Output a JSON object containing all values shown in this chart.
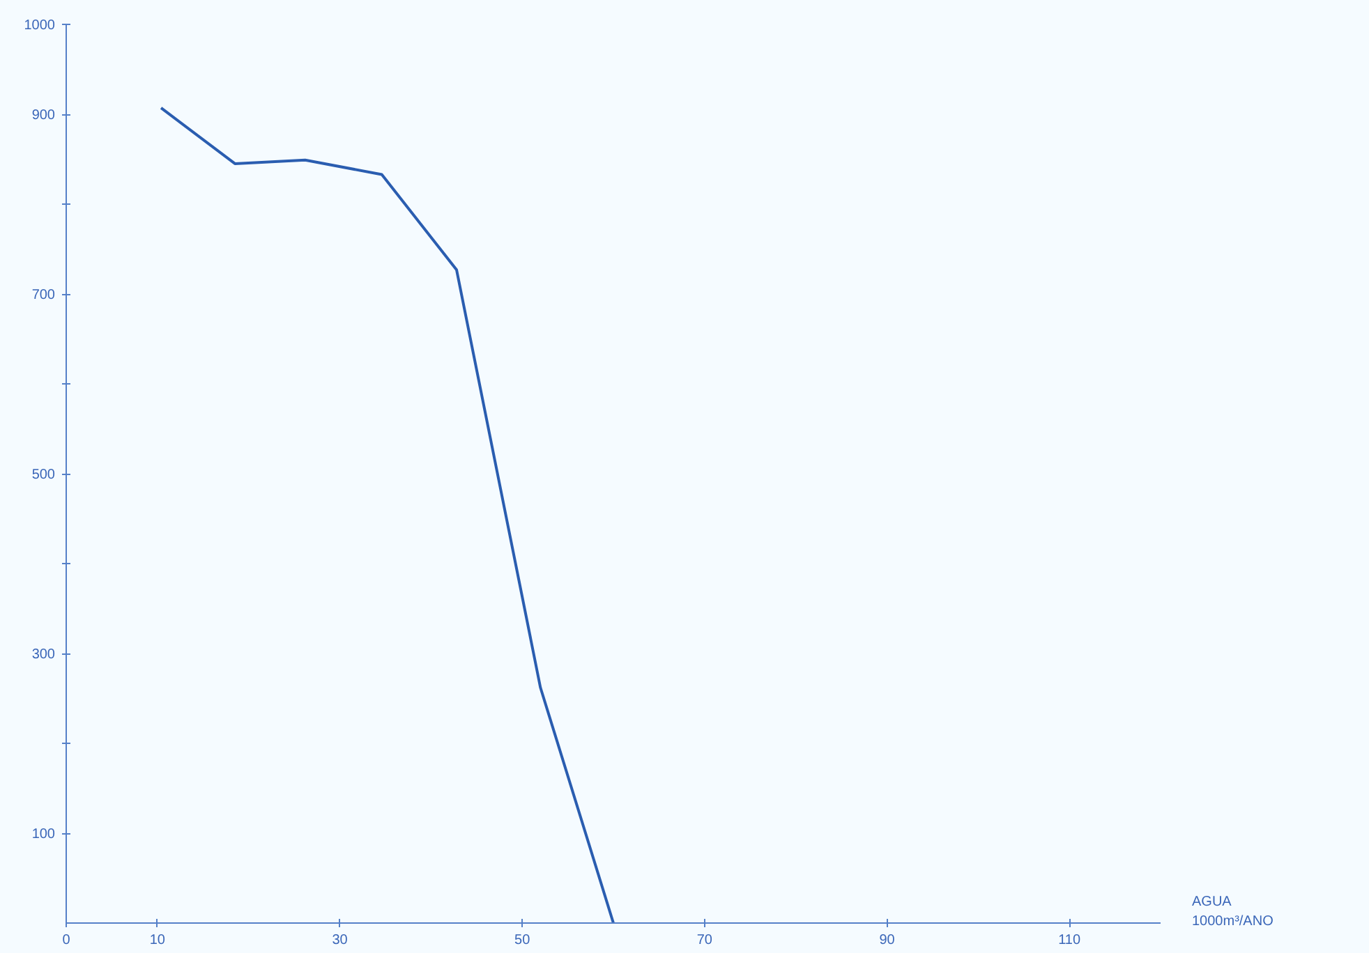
{
  "chart_data": {
    "type": "line",
    "xlabel": "AGUA\n1000m³/ANO",
    "x": [
      10.4,
      18.5,
      26.2,
      34.6,
      42.8,
      52,
      60
    ],
    "series": [
      {
        "color": "#2a5db0",
        "values": [
          907,
          845,
          849,
          833,
          727,
          262,
          0
        ]
      }
    ],
    "xlim": [
      0,
      120
    ],
    "ylim": [
      0,
      1000
    ],
    "xticks": [
      0,
      10,
      30,
      50,
      70,
      90,
      110
    ],
    "yticks": [
      100,
      {
        "value": 200,
        "label": null
      },
      300,
      {
        "value": 400,
        "label": null
      },
      500,
      {
        "value": 600,
        "label": null
      },
      700,
      {
        "value": 800,
        "label": null
      },
      900,
      1000
    ],
    "grid": false,
    "marker": "none",
    "line_style": "solid"
  }
}
